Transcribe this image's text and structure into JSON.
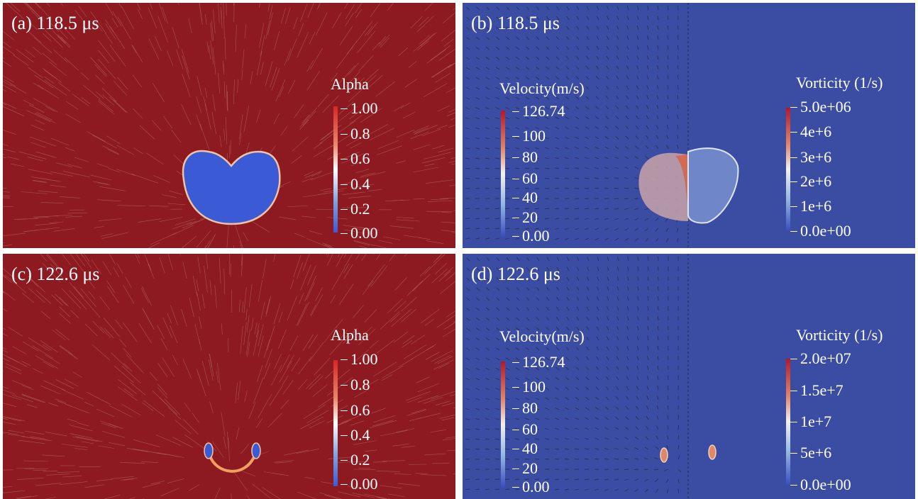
{
  "panels": {
    "a": {
      "label": "(a) 118.5 μs",
      "colorbar": {
        "title": "Alpha",
        "ticks": [
          "1.00",
          "0.8",
          "0.6",
          "0.4",
          "0.2",
          "0.00"
        ]
      }
    },
    "b": {
      "label": "(b) 118.5 μs",
      "velocity": {
        "title": "Velocity(m/s)",
        "ticks": [
          "126.74",
          "100",
          "80",
          "60",
          "40",
          "20",
          "0.00"
        ]
      },
      "vorticity": {
        "title": "Vorticity (1/s)",
        "ticks": [
          "5.0e+06",
          "4e+6",
          "3e+6",
          "2e+6",
          "1e+6",
          "0.0e+00"
        ]
      }
    },
    "c": {
      "label": "(c) 122.6 μs",
      "colorbar": {
        "title": "Alpha",
        "ticks": [
          "1.00",
          "0.8",
          "0.6",
          "0.4",
          "0.2",
          "0.00"
        ]
      }
    },
    "d": {
      "label": "(d) 122.6 μs",
      "velocity": {
        "title": "Velocity(m/s)",
        "ticks": [
          "126.74",
          "100",
          "80",
          "60",
          "40",
          "20",
          "0.00"
        ]
      },
      "vorticity": {
        "title": "Vorticity (1/s)",
        "ticks": [
          "2.0e+07",
          "1.5e+7",
          "1e+7",
          "5e+6",
          "0.0e+00"
        ]
      }
    }
  },
  "colors": {
    "liquid": "#8c1a20",
    "gas": "#3b5bd6",
    "background_blue": "#3b4da3"
  }
}
